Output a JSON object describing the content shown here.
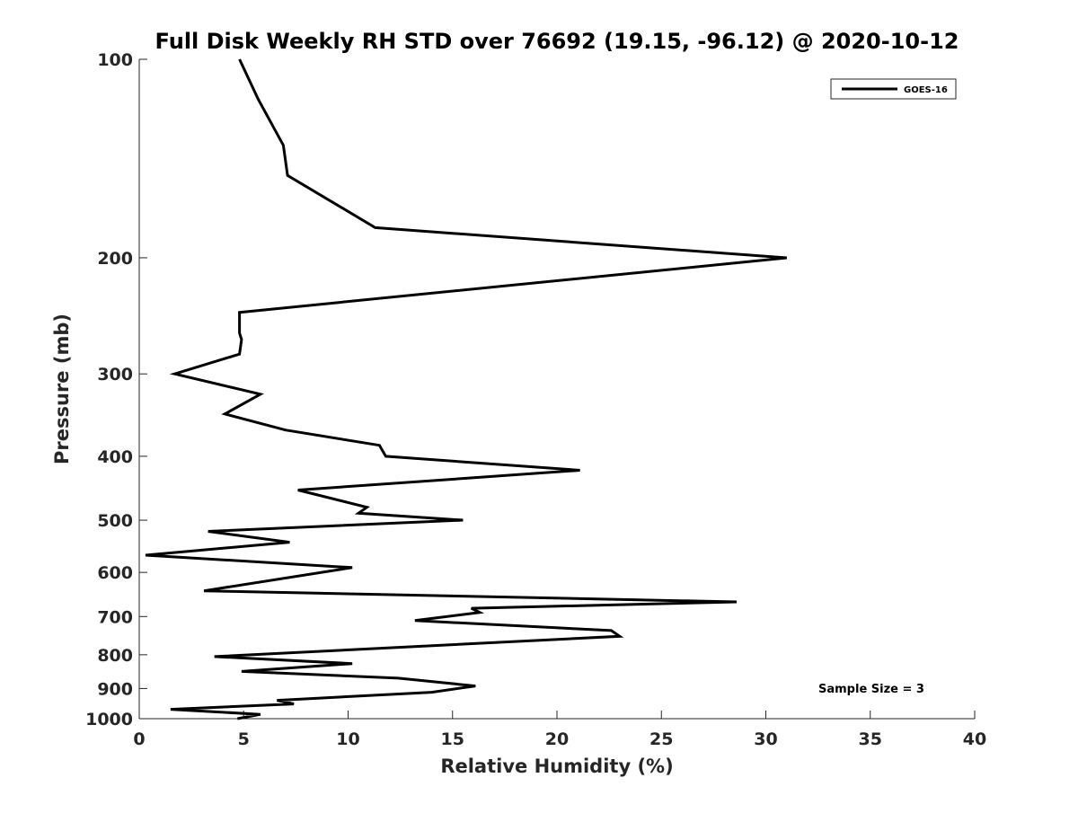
{
  "chart_data": {
    "type": "line",
    "title": "Full Disk Weekly RH STD over 76692 (19.15, -96.12) @ 2020-10-12",
    "xlabel": "Relative Humidity (%)",
    "ylabel": "Pressure (mb)",
    "xlim": [
      0,
      40
    ],
    "ylim": [
      100,
      1000
    ],
    "y_scale": "log",
    "y_inverted": true,
    "grid": false,
    "legend_position": "top-right",
    "x_ticks": [
      "0",
      "5",
      "10",
      "15",
      "20",
      "25",
      "30",
      "35",
      "40"
    ],
    "y_ticks": [
      "100",
      "200",
      "300",
      "400",
      "500",
      "600",
      "700",
      "800",
      "900",
      "1000"
    ],
    "series": [
      {
        "name": "GOES-16",
        "color": "#000000",
        "x": [
          4.8,
          5.7,
          6.9,
          7.1,
          11.3,
          31.0,
          4.8,
          4.8,
          4.9,
          4.8,
          1.7,
          5.8,
          4.1,
          7.0,
          11.5,
          11.8,
          21.1,
          7.6,
          10.9,
          10.5,
          15.5,
          3.3,
          7.2,
          0.3,
          10.2,
          3.1,
          28.6,
          15.9,
          16.3,
          13.2,
          22.6,
          23.0,
          3.6,
          10.2,
          4.9,
          12.4,
          16.1,
          14.0,
          6.6,
          7.4,
          1.5,
          5.8,
          4.7
        ],
        "y": [
          100,
          115,
          135,
          150,
          180,
          200,
          242,
          260,
          266,
          280,
          300,
          322,
          345,
          365,
          385,
          400,
          420,
          450,
          478,
          488,
          500,
          520,
          540,
          565,
          590,
          640,
          665,
          680,
          690,
          710,
          735,
          750,
          805,
          825,
          848,
          868,
          892,
          912,
          938,
          950,
          968,
          985,
          1000
        ]
      }
    ],
    "annotations": [
      "Sample Size = 3"
    ]
  }
}
